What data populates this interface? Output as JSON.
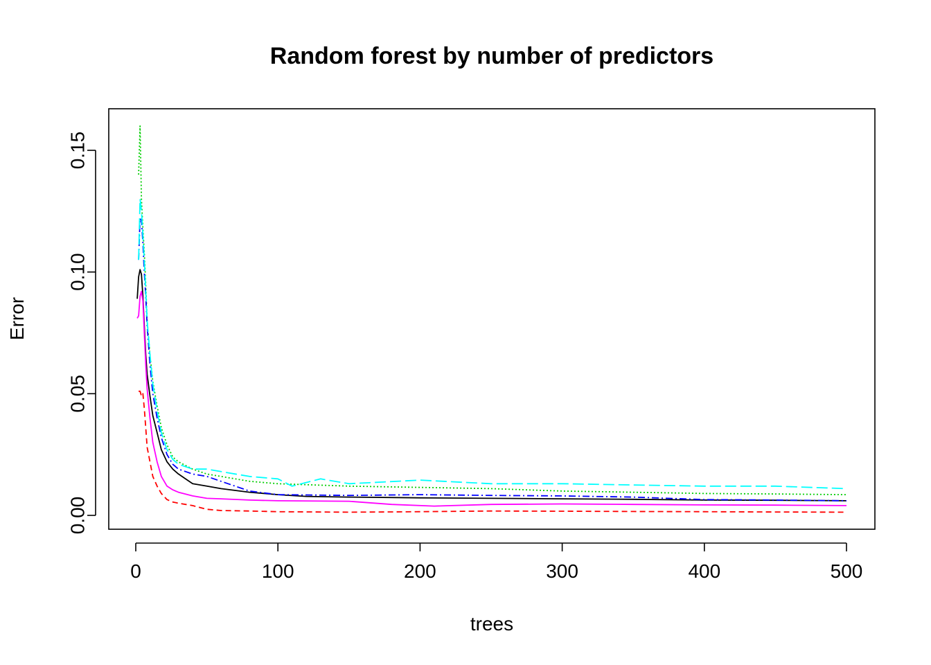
{
  "chart_data": {
    "type": "line",
    "title": "Random forest by number of predictors",
    "xlabel": "trees",
    "ylabel": "Error",
    "xlim": [
      0,
      500
    ],
    "ylim": [
      0.0,
      0.16
    ],
    "x_ticks": [
      "0",
      "100",
      "200",
      "300",
      "400",
      "500"
    ],
    "y_ticks": [
      "0.00",
      "0.05",
      "0.10",
      "0.15"
    ],
    "grid": false,
    "legend": "none",
    "series": [
      {
        "color": "#000000",
        "dash": "solid",
        "points": [
          [
            1,
            0.089
          ],
          [
            2,
            0.098
          ],
          [
            3,
            0.101
          ],
          [
            4,
            0.099
          ],
          [
            5,
            0.09
          ],
          [
            6,
            0.078
          ],
          [
            7,
            0.066
          ],
          [
            8,
            0.058
          ],
          [
            10,
            0.049
          ],
          [
            12,
            0.041
          ],
          [
            15,
            0.034
          ],
          [
            18,
            0.027
          ],
          [
            22,
            0.022
          ],
          [
            26,
            0.019
          ],
          [
            30,
            0.017
          ],
          [
            35,
            0.015
          ],
          [
            40,
            0.013
          ],
          [
            50,
            0.012
          ],
          [
            60,
            0.011
          ],
          [
            80,
            0.0095
          ],
          [
            100,
            0.0085
          ],
          [
            120,
            0.0078
          ],
          [
            150,
            0.0075
          ],
          [
            200,
            0.0072
          ],
          [
            250,
            0.007
          ],
          [
            300,
            0.0068
          ],
          [
            350,
            0.0066
          ],
          [
            400,
            0.0063
          ],
          [
            450,
            0.0062
          ],
          [
            500,
            0.006
          ]
        ]
      },
      {
        "color": "#ff0000",
        "dash": "8 5",
        "points": [
          [
            2,
            0.051
          ],
          [
            3,
            0.051
          ],
          [
            4,
            0.049
          ],
          [
            5,
            0.05
          ],
          [
            6,
            0.044
          ],
          [
            7,
            0.036
          ],
          [
            8,
            0.028
          ],
          [
            10,
            0.022
          ],
          [
            12,
            0.016
          ],
          [
            15,
            0.012
          ],
          [
            18,
            0.009
          ],
          [
            22,
            0.0065
          ],
          [
            26,
            0.0055
          ],
          [
            30,
            0.005
          ],
          [
            40,
            0.004
          ],
          [
            50,
            0.0025
          ],
          [
            60,
            0.002
          ],
          [
            80,
            0.0018
          ],
          [
            100,
            0.0015
          ],
          [
            150,
            0.0013
          ],
          [
            200,
            0.0015
          ],
          [
            250,
            0.0018
          ],
          [
            300,
            0.0017
          ],
          [
            350,
            0.0016
          ],
          [
            400,
            0.0015
          ],
          [
            450,
            0.0014
          ],
          [
            500,
            0.0013
          ]
        ]
      },
      {
        "color": "#00cd00",
        "dash": "2 3",
        "points": [
          [
            2,
            0.14
          ],
          [
            3,
            0.16
          ],
          [
            4,
            0.13
          ],
          [
            5,
            0.118
          ],
          [
            6,
            0.108
          ],
          [
            7,
            0.095
          ],
          [
            8,
            0.08
          ],
          [
            10,
            0.066
          ],
          [
            12,
            0.055
          ],
          [
            15,
            0.045
          ],
          [
            18,
            0.036
          ],
          [
            22,
            0.029
          ],
          [
            26,
            0.024
          ],
          [
            30,
            0.022
          ],
          [
            40,
            0.019
          ],
          [
            50,
            0.017
          ],
          [
            60,
            0.016
          ],
          [
            80,
            0.014
          ],
          [
            100,
            0.013
          ],
          [
            150,
            0.012
          ],
          [
            200,
            0.0115
          ],
          [
            250,
            0.011
          ],
          [
            300,
            0.01
          ],
          [
            350,
            0.0095
          ],
          [
            400,
            0.009
          ],
          [
            450,
            0.0088
          ],
          [
            500,
            0.0085
          ]
        ]
      },
      {
        "color": "#0000ff",
        "dash": "10 4 2 4",
        "points": [
          [
            2,
            0.105
          ],
          [
            3,
            0.122
          ],
          [
            4,
            0.121
          ],
          [
            5,
            0.112
          ],
          [
            6,
            0.1
          ],
          [
            7,
            0.09
          ],
          [
            8,
            0.078
          ],
          [
            10,
            0.062
          ],
          [
            12,
            0.05
          ],
          [
            15,
            0.04
          ],
          [
            18,
            0.032
          ],
          [
            22,
            0.025
          ],
          [
            26,
            0.021
          ],
          [
            30,
            0.019
          ],
          [
            40,
            0.017
          ],
          [
            50,
            0.016
          ],
          [
            60,
            0.014
          ],
          [
            80,
            0.01
          ],
          [
            100,
            0.0085
          ],
          [
            150,
            0.0082
          ],
          [
            200,
            0.0085
          ],
          [
            250,
            0.0082
          ],
          [
            300,
            0.008
          ],
          [
            350,
            0.0075
          ],
          [
            400,
            0.0065
          ],
          [
            450,
            0.0063
          ],
          [
            500,
            0.006
          ]
        ]
      },
      {
        "color": "#00ffff",
        "dash": "16 6",
        "points": [
          [
            2,
            0.105
          ],
          [
            3,
            0.13
          ],
          [
            4,
            0.125
          ],
          [
            5,
            0.115
          ],
          [
            6,
            0.105
          ],
          [
            7,
            0.092
          ],
          [
            8,
            0.08
          ],
          [
            10,
            0.066
          ],
          [
            12,
            0.054
          ],
          [
            15,
            0.043
          ],
          [
            18,
            0.034
          ],
          [
            22,
            0.027
          ],
          [
            26,
            0.023
          ],
          [
            30,
            0.021
          ],
          [
            40,
            0.019
          ],
          [
            50,
            0.019
          ],
          [
            60,
            0.018
          ],
          [
            80,
            0.016
          ],
          [
            100,
            0.015
          ],
          [
            110,
            0.012
          ],
          [
            130,
            0.015
          ],
          [
            150,
            0.013
          ],
          [
            200,
            0.0145
          ],
          [
            250,
            0.013
          ],
          [
            300,
            0.013
          ],
          [
            350,
            0.0125
          ],
          [
            400,
            0.012
          ],
          [
            450,
            0.012
          ],
          [
            500,
            0.011
          ]
        ]
      },
      {
        "color": "#ff00ff",
        "dash": "solid",
        "points": [
          [
            1,
            0.081
          ],
          [
            2,
            0.082
          ],
          [
            3,
            0.09
          ],
          [
            4,
            0.092
          ],
          [
            5,
            0.088
          ],
          [
            6,
            0.075
          ],
          [
            7,
            0.062
          ],
          [
            8,
            0.052
          ],
          [
            10,
            0.04
          ],
          [
            12,
            0.03
          ],
          [
            15,
            0.022
          ],
          [
            18,
            0.016
          ],
          [
            22,
            0.012
          ],
          [
            26,
            0.0105
          ],
          [
            30,
            0.0095
          ],
          [
            40,
            0.008
          ],
          [
            50,
            0.007
          ],
          [
            60,
            0.0068
          ],
          [
            80,
            0.0063
          ],
          [
            100,
            0.006
          ],
          [
            150,
            0.0058
          ],
          [
            180,
            0.0045
          ],
          [
            210,
            0.0038
          ],
          [
            250,
            0.0045
          ],
          [
            300,
            0.0047
          ],
          [
            350,
            0.0045
          ],
          [
            400,
            0.0043
          ],
          [
            450,
            0.0042
          ],
          [
            500,
            0.004
          ]
        ]
      }
    ]
  }
}
